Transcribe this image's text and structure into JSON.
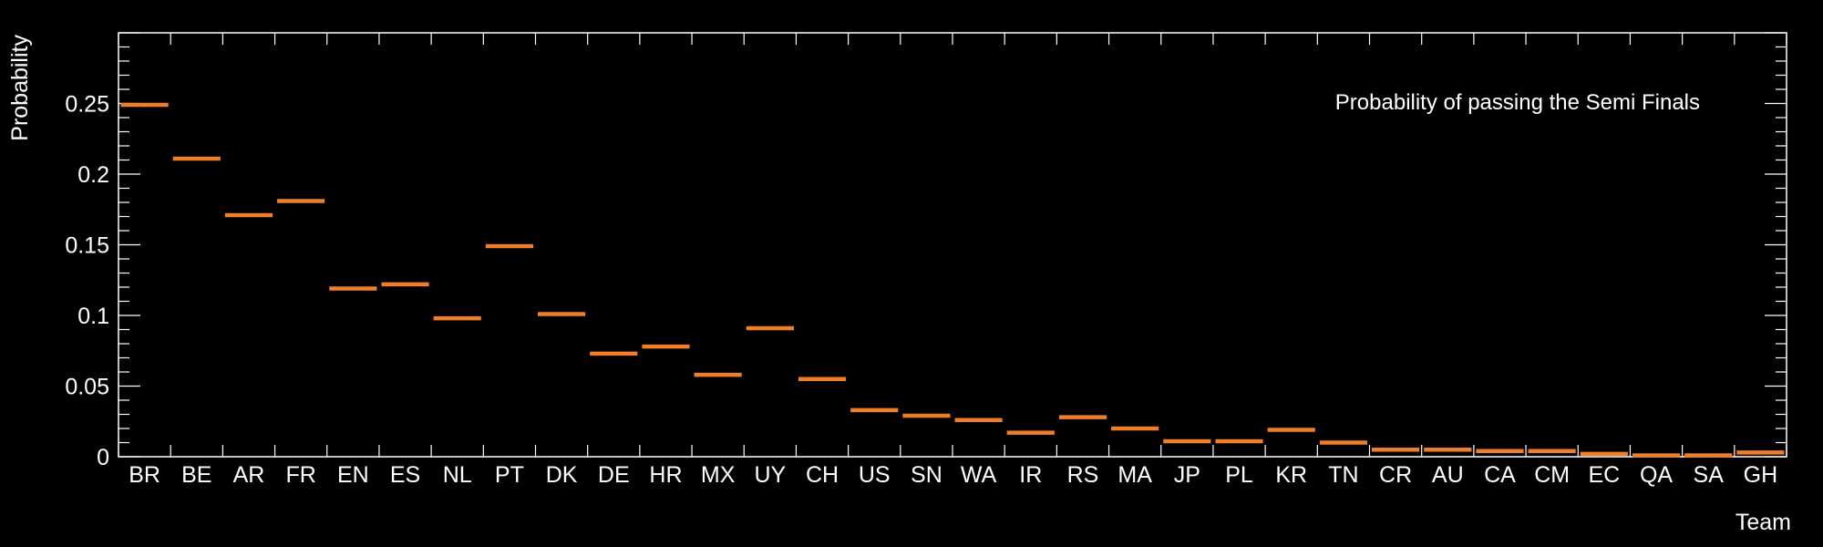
{
  "colors": {
    "background": "#000000",
    "axis": "#ffffff",
    "bar": "#f07d28"
  },
  "chart_data": {
    "type": "bar",
    "style": "histogram-step-markers",
    "title": "",
    "annotation": "Probability of passing the Semi Finals",
    "xlabel": "Team",
    "ylabel": "Probability",
    "ylim": [
      0,
      0.3
    ],
    "yticks": [
      0,
      0.05,
      0.1,
      0.15,
      0.2,
      0.25
    ],
    "ytick_labels": [
      "0",
      "0.05",
      "0.1",
      "0.15",
      "0.2",
      "0.25"
    ],
    "grid": false,
    "legend": "none",
    "categories": [
      "BR",
      "BE",
      "AR",
      "FR",
      "EN",
      "ES",
      "NL",
      "PT",
      "DK",
      "DE",
      "HR",
      "MX",
      "UY",
      "CH",
      "US",
      "SN",
      "WA",
      "IR",
      "RS",
      "MA",
      "JP",
      "PL",
      "KR",
      "TN",
      "CR",
      "AU",
      "CA",
      "CM",
      "EC",
      "QA",
      "SA",
      "GH"
    ],
    "values": [
      0.249,
      0.211,
      0.171,
      0.181,
      0.119,
      0.122,
      0.098,
      0.149,
      0.101,
      0.073,
      0.078,
      0.058,
      0.091,
      0.055,
      0.033,
      0.029,
      0.026,
      0.017,
      0.028,
      0.02,
      0.011,
      0.011,
      0.019,
      0.01,
      0.005,
      0.005,
      0.004,
      0.004,
      0.002,
      0.001,
      0.001,
      0.003
    ]
  }
}
